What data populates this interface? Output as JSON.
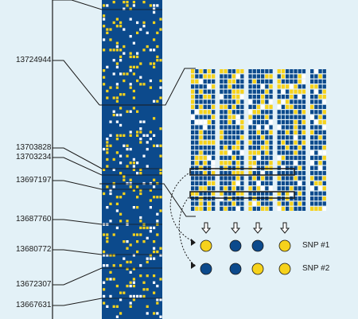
{
  "figure": {
    "background": "#e3f1f7",
    "colors": {
      "blue": "#0c4a8c",
      "yellow": "#f6d21c",
      "white": "#ffffff",
      "line": "#1a1a1a"
    },
    "positions": [
      "13724944",
      "13703828",
      "13703234",
      "13697197",
      "13687760",
      "13680772",
      "13672307",
      "13667631"
    ],
    "arrow_icon": "down-arrow-icon",
    "snp_rows": [
      {
        "label": "SNP #1",
        "alleles": [
          "yellow",
          "blue",
          "blue",
          "yellow"
        ]
      },
      {
        "label": "SNP #2",
        "alleles": [
          "blue",
          "blue",
          "yellow",
          "yellow"
        ]
      }
    ]
  }
}
